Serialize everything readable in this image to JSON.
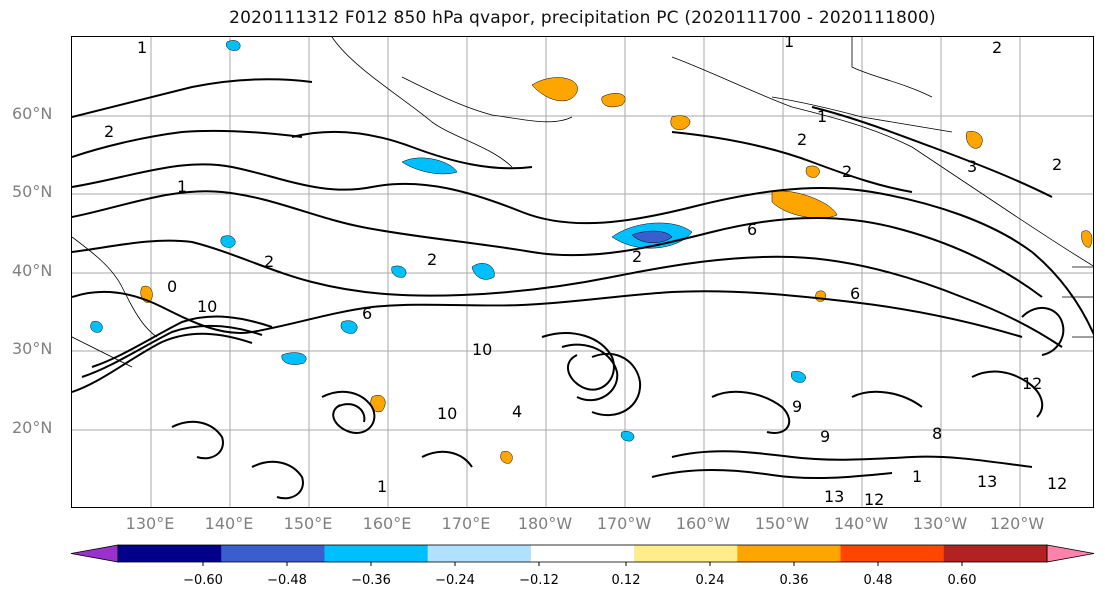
{
  "title": "2020111312 F012 850 hPa qvapor, precipitation PC (2020111700 - 2020111800)",
  "lat_labels": [
    "60°N",
    "50°N",
    "40°N",
    "30°N",
    "20°N"
  ],
  "lon_labels": [
    "130°E",
    "140°E",
    "150°E",
    "160°E",
    "170°E",
    "180°W",
    "170°W",
    "160°W",
    "150°W",
    "140°W",
    "130°W",
    "120°W"
  ],
  "colorbar": {
    "colors": [
      "#9932cc",
      "#00008b",
      "#3a5fcd",
      "#00bfff",
      "#b0e2ff",
      "#ffffff",
      "#ffec8b",
      "#ffa500",
      "#ff4500",
      "#b22222",
      "#ff82ab"
    ],
    "tick_labels": [
      "−0.60",
      "−0.48",
      "−0.36",
      "−0.24",
      "−0.12",
      "0.12",
      "0.24",
      "0.36",
      "0.48",
      "0.60"
    ]
  },
  "contour_labels": [
    "1",
    "2",
    "1",
    "2",
    "1",
    "0",
    "2",
    "2",
    "2",
    "2",
    "2",
    "1",
    "3",
    "6",
    "6",
    "2",
    "6",
    "10",
    "9",
    "10",
    "12",
    "13",
    "8",
    "9",
    "4",
    "10",
    "1",
    "12",
    "13",
    "12",
    "1"
  ]
}
